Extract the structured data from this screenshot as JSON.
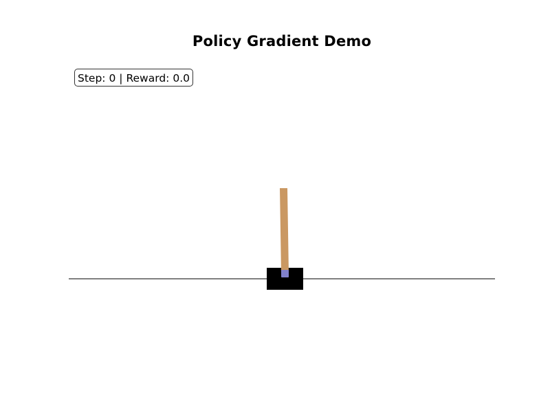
{
  "title": "Policy Gradient Demo",
  "status": {
    "step_label": "Step:",
    "step_value": "0",
    "separator": "|",
    "reward_label": "Reward:",
    "reward_value": "0.0"
  },
  "colors": {
    "track": "#555555",
    "cart": "#000000",
    "pole": "#ca9862",
    "axle": "#8181cb"
  },
  "state": {
    "step": 0,
    "reward": 0.0
  }
}
